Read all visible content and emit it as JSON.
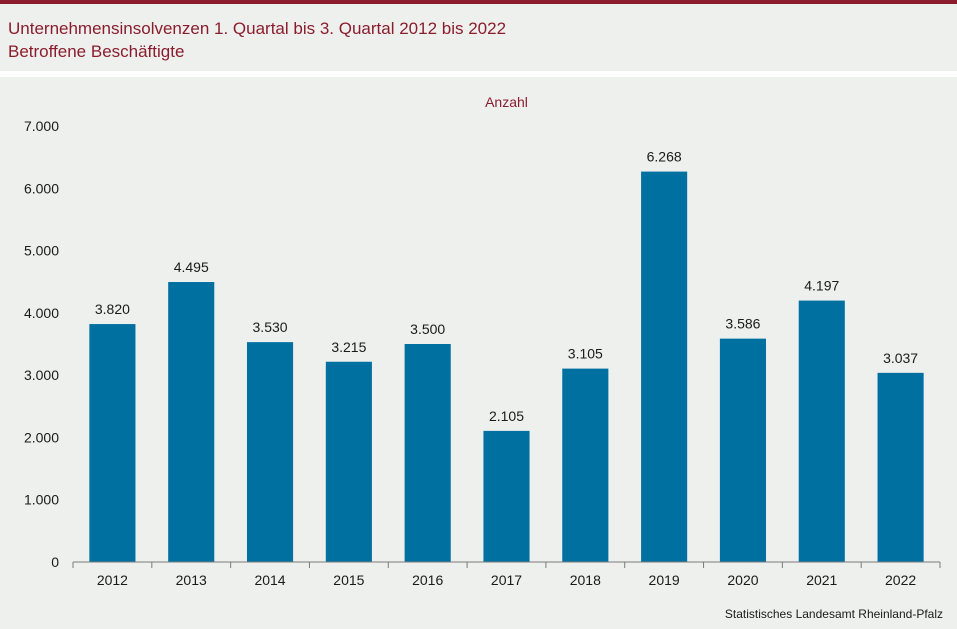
{
  "header": {
    "title": "Unternehmensinsolvenzen 1. Quartal bis 3. Quartal 2012 bis 2022",
    "subtitle": "Betroffene Beschäftigte"
  },
  "source": "Statistisches Landesamt Rheinland-Pfalz",
  "colors": {
    "accent": "#8b1c2e",
    "bar": "#0070a0",
    "background": "#eef0ee"
  },
  "chart_data": {
    "type": "bar",
    "title": "Unternehmensinsolvenzen 1. Quartal bis 3. Quartal 2012 bis 2022",
    "subtitle": "Betroffene Beschäftigte",
    "unit_label": "Anzahl",
    "xlabel": "",
    "ylabel": "Anzahl",
    "categories": [
      "2012",
      "2013",
      "2014",
      "2015",
      "2016",
      "2017",
      "2018",
      "2019",
      "2020",
      "2021",
      "2022"
    ],
    "values": [
      3820,
      4495,
      3530,
      3215,
      3500,
      2105,
      3105,
      6268,
      3586,
      4197,
      3037
    ],
    "value_labels": [
      "3.820",
      "4.495",
      "3.530",
      "3.215",
      "3.500",
      "2.105",
      "3.105",
      "6.268",
      "3.586",
      "4.197",
      "3.037"
    ],
    "ylim": [
      0,
      7000
    ],
    "yticks": [
      0,
      1000,
      2000,
      3000,
      4000,
      5000,
      6000,
      7000
    ],
    "ytick_labels": [
      "0",
      "1.000",
      "2.000",
      "3.000",
      "4.000",
      "5.000",
      "6.000",
      "7.000"
    ],
    "grid": false,
    "legend": "none"
  }
}
